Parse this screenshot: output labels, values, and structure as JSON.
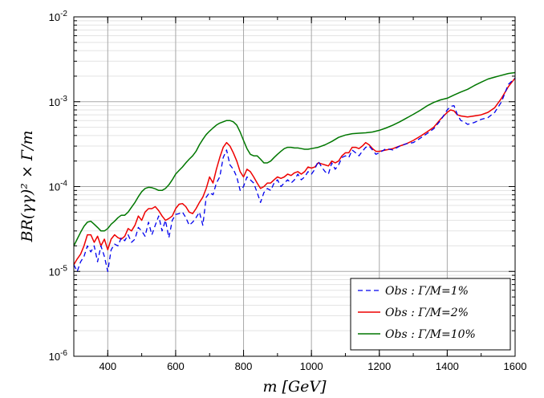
{
  "chart_data": {
    "type": "line",
    "xlabel": "m [GeV]",
    "ylabel": "BR(γγ)² × Γ/m",
    "xlim": [
      300,
      1600
    ],
    "ylim": [
      1e-06,
      0.01
    ],
    "yscale": "log",
    "grid": true,
    "legend_position": "bottom-right",
    "x_ticks": [
      "400",
      "600",
      "800",
      "1000",
      "1200",
      "1400",
      "1600"
    ],
    "y_ticks": [
      {
        "base": "10",
        "exp": "-6"
      },
      {
        "base": "10",
        "exp": "-5"
      },
      {
        "base": "10",
        "exp": "-4"
      },
      {
        "base": "10",
        "exp": "-3"
      },
      {
        "base": "10",
        "exp": "-2"
      }
    ],
    "series": [
      {
        "name": "Obs : Γ/M=1%",
        "color": "#0000ee",
        "style": "dashed",
        "x": [
          300,
          310,
          320,
          330,
          340,
          350,
          360,
          370,
          380,
          390,
          400,
          410,
          420,
          430,
          440,
          450,
          460,
          470,
          480,
          490,
          500,
          510,
          520,
          530,
          540,
          550,
          560,
          570,
          580,
          590,
          600,
          610,
          620,
          630,
          640,
          650,
          660,
          670,
          680,
          690,
          700,
          710,
          720,
          730,
          740,
          750,
          760,
          770,
          780,
          790,
          800,
          810,
          820,
          830,
          840,
          850,
          860,
          870,
          880,
          890,
          900,
          910,
          920,
          930,
          940,
          950,
          960,
          970,
          980,
          990,
          1000,
          1010,
          1020,
          1030,
          1040,
          1050,
          1060,
          1070,
          1080,
          1090,
          1100,
          1110,
          1120,
          1130,
          1140,
          1150,
          1160,
          1170,
          1180,
          1190,
          1200,
          1220,
          1240,
          1260,
          1280,
          1300,
          1320,
          1340,
          1360,
          1380,
          1400,
          1410,
          1420,
          1430,
          1440,
          1450,
          1460,
          1480,
          1500,
          1520,
          1540,
          1560,
          1580,
          1600
        ],
        "values": [
          1.2e-05,
          1e-05,
          1.3e-05,
          1.5e-05,
          2e-05,
          1.7e-05,
          2e-05,
          1.3e-05,
          2e-05,
          1.5e-05,
          1e-05,
          1.8e-05,
          2.1e-05,
          2e-05,
          2.5e-05,
          2.3e-05,
          2.7e-05,
          2.2e-05,
          2.4e-05,
          3.3e-05,
          3e-05,
          2.6e-05,
          3.8e-05,
          2.7e-05,
          3.5e-05,
          4.5e-05,
          3e-05,
          4e-05,
          2.5e-05,
          4e-05,
          4.7e-05,
          4.8e-05,
          5e-05,
          4.3e-05,
          3.5e-05,
          3.8e-05,
          4.3e-05,
          5e-05,
          3.5e-05,
          7.5e-05,
          8.5e-05,
          8e-05,
          0.00011,
          0.00013,
          0.00022,
          0.00027,
          0.00018,
          0.00016,
          0.00013,
          9e-05,
          0.0001,
          0.00013,
          0.00012,
          0.00011,
          8.5e-05,
          6.5e-05,
          8.5e-05,
          9.5e-05,
          9e-05,
          0.00011,
          0.00012,
          0.0001,
          0.00011,
          0.00012,
          0.00011,
          0.00012,
          0.00014,
          0.00012,
          0.00013,
          0.00015,
          0.00014,
          0.00016,
          0.0002,
          0.00017,
          0.00015,
          0.00014,
          0.00019,
          0.00016,
          0.00018,
          0.00022,
          0.00023,
          0.00022,
          0.00027,
          0.00025,
          0.00023,
          0.00026,
          0.00029,
          0.0003,
          0.00027,
          0.00024,
          0.00025,
          0.00028,
          0.00027,
          0.0003,
          0.00032,
          0.00033,
          0.00037,
          0.00042,
          0.00048,
          0.0006,
          0.0008,
          0.00088,
          0.0009,
          0.0007,
          0.0006,
          0.00058,
          0.00054,
          0.00057,
          0.00062,
          0.00065,
          0.00075,
          0.001,
          0.0016,
          0.0019
        ]
      },
      {
        "name": "Obs : Γ/M=2%",
        "color": "#ee0000",
        "style": "solid",
        "x": [
          300,
          310,
          320,
          330,
          340,
          350,
          360,
          370,
          380,
          390,
          400,
          410,
          420,
          430,
          440,
          450,
          460,
          470,
          480,
          490,
          500,
          510,
          520,
          530,
          540,
          550,
          560,
          570,
          580,
          590,
          600,
          610,
          620,
          630,
          640,
          650,
          660,
          670,
          680,
          690,
          700,
          710,
          720,
          730,
          740,
          750,
          760,
          770,
          780,
          790,
          800,
          810,
          820,
          830,
          840,
          850,
          860,
          870,
          880,
          890,
          900,
          910,
          920,
          930,
          940,
          950,
          960,
          970,
          980,
          990,
          1000,
          1010,
          1020,
          1030,
          1040,
          1050,
          1060,
          1070,
          1080,
          1090,
          1100,
          1110,
          1120,
          1130,
          1140,
          1150,
          1160,
          1170,
          1180,
          1190,
          1200,
          1220,
          1240,
          1260,
          1280,
          1300,
          1320,
          1340,
          1360,
          1380,
          1400,
          1410,
          1420,
          1430,
          1440,
          1450,
          1460,
          1480,
          1500,
          1520,
          1540,
          1560,
          1580,
          1600
        ],
        "values": [
          1.2e-05,
          1.4e-05,
          1.6e-05,
          2e-05,
          2.7e-05,
          2.7e-05,
          2.2e-05,
          2.6e-05,
          2e-05,
          2.4e-05,
          1.8e-05,
          2.4e-05,
          2.7e-05,
          2.5e-05,
          2.4e-05,
          2.6e-05,
          3.2e-05,
          3e-05,
          3.5e-05,
          4.5e-05,
          4e-05,
          5e-05,
          5.5e-05,
          5.5e-05,
          5.8e-05,
          5.2e-05,
          4.5e-05,
          4e-05,
          4.2e-05,
          4.5e-05,
          5.5e-05,
          6.2e-05,
          6.3e-05,
          5.8e-05,
          5e-05,
          4.8e-05,
          5.5e-05,
          6.5e-05,
          7.5e-05,
          9.5e-05,
          0.00013,
          0.00011,
          0.00016,
          0.00022,
          0.00029,
          0.00033,
          0.0003,
          0.00025,
          0.0002,
          0.00015,
          0.00013,
          0.00016,
          0.00015,
          0.00013,
          0.00011,
          9.5e-05,
          0.0001,
          0.00011,
          0.00011,
          0.00012,
          0.00013,
          0.000125,
          0.00013,
          0.00014,
          0.000135,
          0.000145,
          0.00015,
          0.00014,
          0.00015,
          0.00017,
          0.000165,
          0.00017,
          0.00019,
          0.000185,
          0.00018,
          0.000175,
          0.0002,
          0.00019,
          0.0002,
          0.00023,
          0.00025,
          0.00025,
          0.00029,
          0.00029,
          0.00028,
          0.0003,
          0.00033,
          0.00031,
          0.00028,
          0.00026,
          0.00026,
          0.00027,
          0.00028,
          0.0003,
          0.00032,
          0.00035,
          0.00039,
          0.00044,
          0.0005,
          0.00062,
          0.00075,
          0.0008,
          0.00078,
          0.0007,
          0.00068,
          0.00067,
          0.00066,
          0.00068,
          0.0007,
          0.00075,
          0.00085,
          0.0011,
          0.0015,
          0.0019
        ]
      },
      {
        "name": "Obs : Γ/M=10%",
        "color": "#007700",
        "style": "solid",
        "x": [
          300,
          310,
          320,
          330,
          340,
          350,
          360,
          370,
          380,
          390,
          400,
          410,
          420,
          430,
          440,
          450,
          460,
          470,
          480,
          490,
          500,
          510,
          520,
          530,
          540,
          550,
          560,
          570,
          580,
          590,
          600,
          610,
          620,
          630,
          640,
          650,
          660,
          670,
          680,
          690,
          700,
          710,
          720,
          730,
          740,
          750,
          760,
          770,
          780,
          790,
          800,
          810,
          820,
          830,
          840,
          850,
          860,
          870,
          880,
          890,
          900,
          910,
          920,
          930,
          940,
          950,
          960,
          970,
          980,
          990,
          1000,
          1020,
          1040,
          1060,
          1080,
          1100,
          1120,
          1140,
          1160,
          1180,
          1200,
          1220,
          1240,
          1260,
          1280,
          1300,
          1320,
          1340,
          1360,
          1380,
          1400,
          1420,
          1440,
          1460,
          1480,
          1500,
          1520,
          1540,
          1560,
          1580,
          1600
        ],
        "values": [
          2e-05,
          2.4e-05,
          2.9e-05,
          3.4e-05,
          3.8e-05,
          3.9e-05,
          3.6e-05,
          3.3e-05,
          3e-05,
          3e-05,
          3.2e-05,
          3.6e-05,
          3.9e-05,
          4.3e-05,
          4.6e-05,
          4.6e-05,
          5e-05,
          5.7e-05,
          6.5e-05,
          7.6e-05,
          8.7e-05,
          9.5e-05,
          9.8e-05,
          9.7e-05,
          9.4e-05,
          9e-05,
          9e-05,
          9.5e-05,
          0.000105,
          0.00012,
          0.00014,
          0.000155,
          0.00017,
          0.00019,
          0.00021,
          0.00023,
          0.00026,
          0.00031,
          0.00036,
          0.00041,
          0.00045,
          0.00049,
          0.00053,
          0.00056,
          0.00058,
          0.0006,
          0.0006,
          0.00058,
          0.00053,
          0.00044,
          0.00035,
          0.00028,
          0.00024,
          0.00023,
          0.00023,
          0.00021,
          0.00019,
          0.00019,
          0.0002,
          0.00022,
          0.00024,
          0.00026,
          0.00028,
          0.00029,
          0.00029,
          0.000285,
          0.000285,
          0.00028,
          0.000275,
          0.000275,
          0.00028,
          0.00029,
          0.00031,
          0.00034,
          0.00038,
          0.000405,
          0.00042,
          0.000425,
          0.00043,
          0.00044,
          0.00046,
          0.00049,
          0.00053,
          0.00058,
          0.00064,
          0.00071,
          0.00079,
          0.00089,
          0.00098,
          0.00105,
          0.0011,
          0.0012,
          0.0013,
          0.0014,
          0.00155,
          0.0017,
          0.00185,
          0.00195,
          0.00205,
          0.00215,
          0.0022
        ]
      }
    ]
  }
}
